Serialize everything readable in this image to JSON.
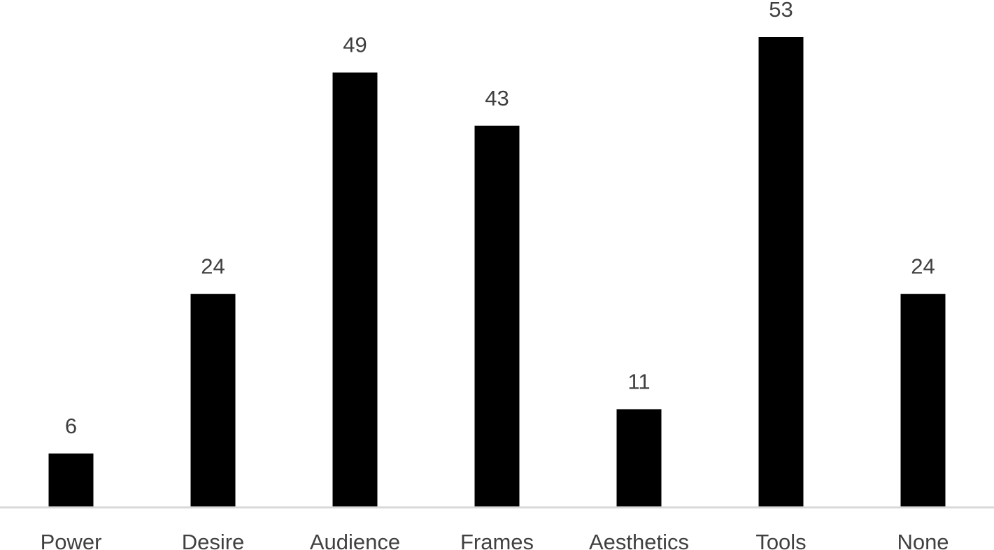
{
  "chart_data": {
    "type": "bar",
    "title": "",
    "xlabel": "",
    "ylabel": "",
    "categories": [
      "Power",
      "Desire",
      "Audience",
      "Frames",
      "Aesthetics",
      "Tools",
      "None"
    ],
    "values": [
      6,
      24,
      49,
      43,
      11,
      53,
      24
    ],
    "ylim": [
      0,
      53
    ],
    "grid": false,
    "legend": "none",
    "data_labels": true,
    "colors": {
      "bar": "#000000",
      "axis": "#d9d9d9",
      "text": "#404040"
    }
  }
}
